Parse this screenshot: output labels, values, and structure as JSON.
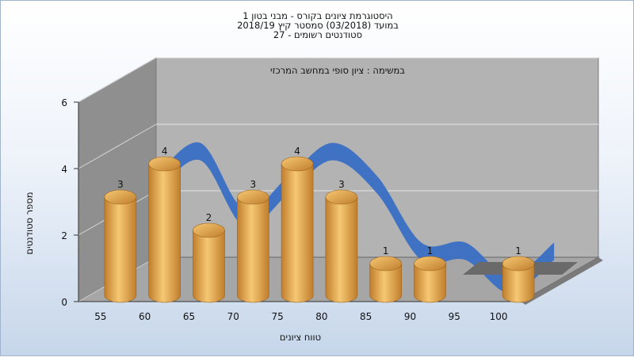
{
  "chart_title": {
    "line1": "היסטוגרמת ציונים בקורס - מבני בטון 1",
    "line2": "במועד  (03/2018)  סמסטר קיץ 2018/19",
    "line3": "סטודנטים רשומים - 27"
  },
  "colors": {
    "bar_light": "#f6c874",
    "bar_dark": "#c07e2c",
    "curve": "#3a6fc4",
    "back_wall": "#b3b3b3",
    "side_wall": "#8f8f8f",
    "floor": "#a6a6a6"
  },
  "chart_data": {
    "type": "bar",
    "subtitle": "במשימה : ציון סופי במחשב המרכזי",
    "categories": [
      "55",
      "60",
      "65",
      "70",
      "75",
      "80",
      "85",
      "90",
      "95",
      "100"
    ],
    "values": [
      3,
      4,
      2,
      3,
      4,
      3,
      1,
      1,
      0,
      1
    ],
    "data_labels": [
      "3",
      "4",
      "2",
      "3",
      "4",
      "3",
      "1",
      "1",
      "",
      "1"
    ],
    "ylim": [
      0,
      6
    ],
    "yticks": [
      "0",
      "2",
      "4",
      "6"
    ],
    "xlabel": "טווח ציונים",
    "ylabel": "מספר סטודנטים",
    "grid": true,
    "has_trend_curve": true
  }
}
